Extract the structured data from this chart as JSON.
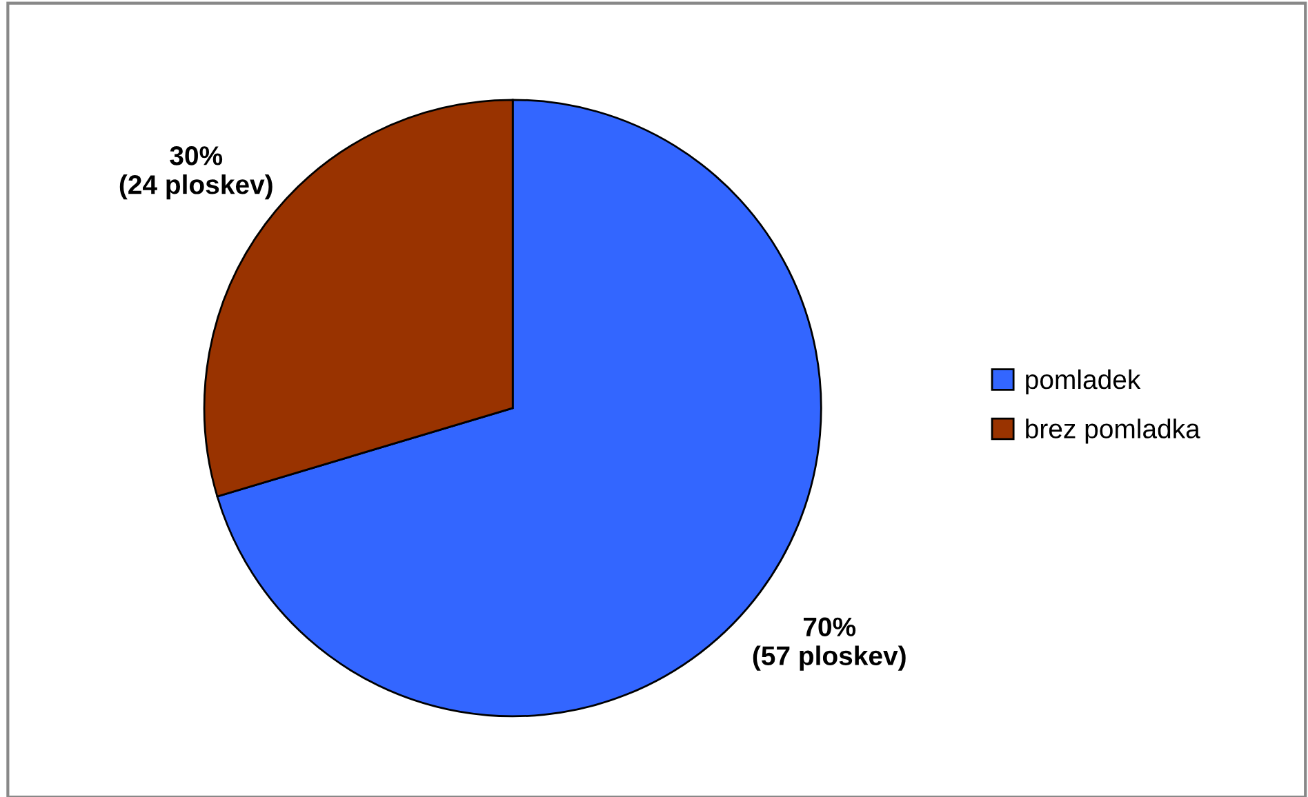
{
  "chart_data": {
    "type": "pie",
    "categories": [
      "pomladek",
      "brez pomladka"
    ],
    "values": [
      57,
      24
    ],
    "colors": [
      "#3366ff",
      "#993300"
    ],
    "value_labels": [
      "70%\n(57 ploskev)",
      "30%\n(24 ploskev)"
    ],
    "legend": "right"
  }
}
